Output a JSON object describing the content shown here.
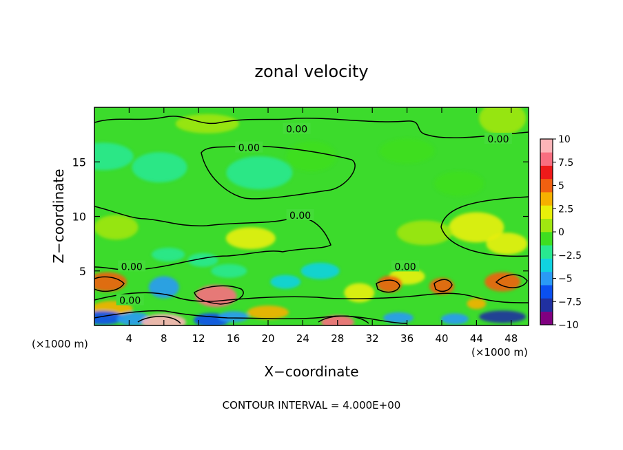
{
  "chart_data": {
    "type": "heatmap",
    "title": "zonal velocity",
    "xlabel": "X−coordinate",
    "ylabel": "Z−coordinate",
    "x_unit_left": "(×1000 m)",
    "x_unit_right": "(×1000 m)",
    "xlim": [
      0,
      50
    ],
    "ylim": [
      0,
      20
    ],
    "x_ticks": [
      4,
      8,
      12,
      16,
      20,
      24,
      28,
      32,
      36,
      40,
      44,
      48
    ],
    "y_ticks": [
      5,
      10,
      15
    ],
    "contour_interval_text": "CONTOUR INTERVAL = 4.000E+00",
    "contour_labels": [
      {
        "text": "0.00",
        "x": 23.3,
        "y": 18.0
      },
      {
        "text": "0.00",
        "x": 46.5,
        "y": 17.1
      },
      {
        "text": "0.00",
        "x": 17.8,
        "y": 16.3
      },
      {
        "text": "0.00",
        "x": 23.7,
        "y": 10.1
      },
      {
        "text": "0.00",
        "x": 4.3,
        "y": 5.4
      },
      {
        "text": "0.00",
        "x": 35.8,
        "y": 5.4
      },
      {
        "text": "0.00",
        "x": 4.1,
        "y": 2.3
      }
    ],
    "colorbar": {
      "ticks": [
        "10",
        "7.5",
        "5",
        "2.5",
        "0",
        "−2.5",
        "−5",
        "−7.5",
        "−10"
      ],
      "range": [
        -10,
        10
      ],
      "colors": [
        "#800080",
        "#2030a0",
        "#0a50f0",
        "#2a9af5",
        "#10d2e0",
        "#28e890",
        "#3ede20",
        "#a0e610",
        "#e8f00a",
        "#f5b000",
        "#f06010",
        "#ee1a1a",
        "#f86e80",
        "#fcb4b8"
      ]
    },
    "features": [
      {
        "x": 1.0,
        "y": 15.5,
        "value": -1.5
      },
      {
        "x": 7.5,
        "y": 14.5,
        "value": -1.5
      },
      {
        "x": 19.0,
        "y": 14.0,
        "value": -1.8
      },
      {
        "x": 25.0,
        "y": 15.5,
        "value": -1.2
      },
      {
        "x": 36.0,
        "y": 16.0,
        "value": -1.0
      },
      {
        "x": 42.0,
        "y": 13.0,
        "value": -0.8
      },
      {
        "x": 13.0,
        "y": 18.5,
        "value": 0.4
      },
      {
        "x": 47.0,
        "y": 19.0,
        "value": 0.5
      },
      {
        "x": 44.0,
        "y": 9.0,
        "value": 1.5
      },
      {
        "x": 47.5,
        "y": 7.5,
        "value": 2.0
      },
      {
        "x": 38.0,
        "y": 8.5,
        "value": 1.0
      },
      {
        "x": 18.0,
        "y": 8.0,
        "value": 1.5
      },
      {
        "x": 2.5,
        "y": 9.0,
        "value": 1.0
      },
      {
        "x": 12.5,
        "y": 6.0,
        "value": -2.5
      },
      {
        "x": 8.5,
        "y": 6.5,
        "value": -2.0
      },
      {
        "x": 26.0,
        "y": 5.0,
        "value": -4.0
      },
      {
        "x": 22.0,
        "y": 4.0,
        "value": -3.0
      },
      {
        "x": 15.5,
        "y": 5.0,
        "value": -1.5
      },
      {
        "x": 36.0,
        "y": 4.5,
        "value": 2.5
      },
      {
        "x": 1.5,
        "y": 4.0,
        "value": 5.0
      },
      {
        "x": 8.0,
        "y": 3.5,
        "value": -5.5
      },
      {
        "x": 14.0,
        "y": 2.7,
        "value": 7.5
      },
      {
        "x": 34.0,
        "y": 3.8,
        "value": 5.5
      },
      {
        "x": 40.0,
        "y": 3.6,
        "value": 5.0
      },
      {
        "x": 47.0,
        "y": 4.0,
        "value": 5.5
      },
      {
        "x": 30.5,
        "y": 3.0,
        "value": 2.5
      },
      {
        "x": 2.0,
        "y": 1.5,
        "value": 3.0
      },
      {
        "x": 1.0,
        "y": 0.7,
        "value": -6.0
      },
      {
        "x": 4.5,
        "y": 0.6,
        "value": -5.0
      },
      {
        "x": 8.0,
        "y": 0.3,
        "value": 9.0
      },
      {
        "x": 13.5,
        "y": 0.5,
        "value": -7.0
      },
      {
        "x": 16.0,
        "y": 0.8,
        "value": -5.0
      },
      {
        "x": 20.0,
        "y": 1.2,
        "value": 3.0
      },
      {
        "x": 28.0,
        "y": 0.3,
        "value": 8.5
      },
      {
        "x": 35.0,
        "y": 0.7,
        "value": -5.0
      },
      {
        "x": 41.5,
        "y": 0.6,
        "value": -5.0
      },
      {
        "x": 47.0,
        "y": 0.8,
        "value": -7.5
      },
      {
        "x": 44.0,
        "y": 2.0,
        "value": 3.0
      }
    ]
  }
}
